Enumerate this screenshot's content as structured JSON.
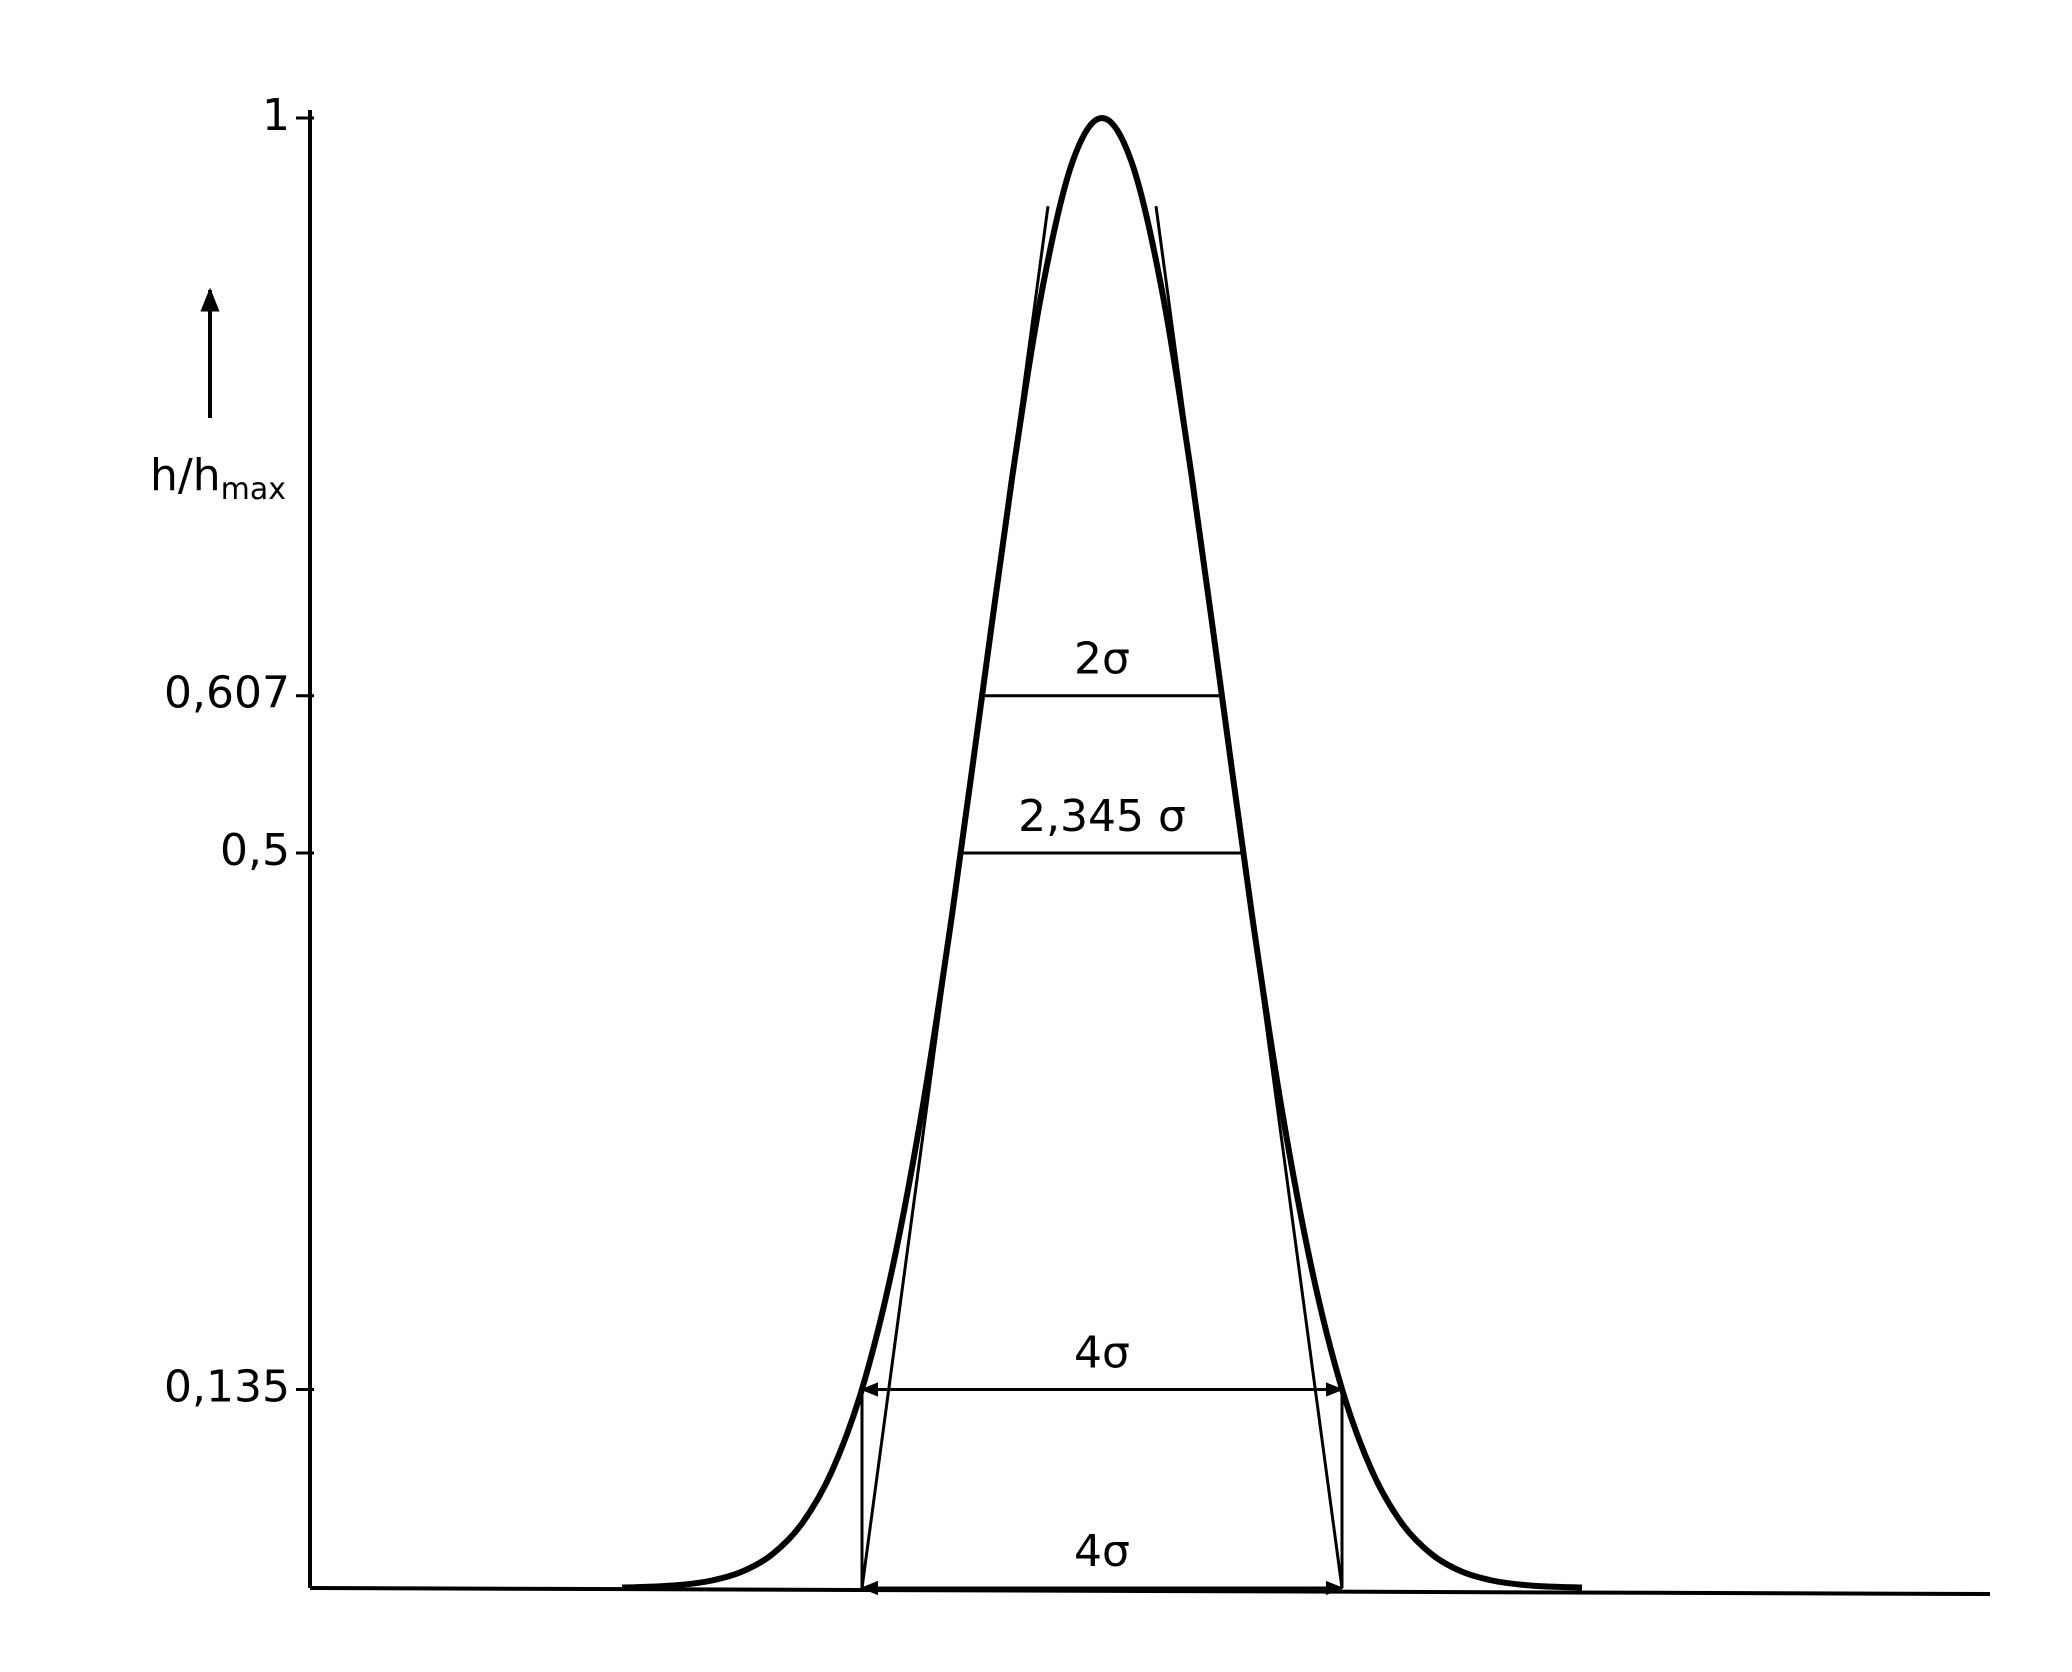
{
  "chart_data": {
    "type": "line",
    "y_label": "h/h",
    "y_label_sub": "max",
    "x": [
      -4,
      -3.75,
      -3.5,
      -3.25,
      -3,
      -2.75,
      -2.5,
      -2.25,
      -2,
      -1.75,
      -1.5,
      -1.25,
      -1,
      -0.75,
      -0.5,
      -0.25,
      0,
      0.25,
      0.5,
      0.75,
      1,
      1.25,
      1.5,
      1.75,
      2,
      2.25,
      2.5,
      2.75,
      3,
      3.25,
      3.5,
      3.75,
      4
    ],
    "series": [
      {
        "color": "#000000",
        "values": [
          0.0003,
          0.0009,
          0.0022,
          0.0051,
          0.0111,
          0.0228,
          0.0439,
          0.0796,
          0.1353,
          0.2163,
          0.3247,
          0.4578,
          0.6065,
          0.7548,
          0.8825,
          0.9692,
          1,
          0.9692,
          0.8825,
          0.7548,
          0.6065,
          0.4578,
          0.3247,
          0.2163,
          0.1353,
          0.0796,
          0.0439,
          0.0228,
          0.0111,
          0.0051,
          0.0022,
          0.0009,
          0.0003
        ]
      }
    ],
    "xlim": [
      -6.6,
      7.4
    ],
    "ylim": [
      0,
      1
    ],
    "yticks": [
      {
        "value": 0.135,
        "label": "0,135"
      },
      {
        "value": 0.5,
        "label": "0,5"
      },
      {
        "value": 0.607,
        "label": "0,607"
      },
      1
    ],
    "annotations": [
      {
        "text": "2σ",
        "y": 0.607,
        "x": [
          -1,
          1
        ]
      },
      {
        "text": "2,345 σ",
        "y": 0.5,
        "x": [
          -1.1725,
          1.1725
        ]
      },
      {
        "text": "4σ",
        "y": 0.135,
        "x": [
          -2,
          2
        ]
      },
      {
        "text": "4σ",
        "y": 0,
        "x": [
          -2,
          2
        ]
      }
    ],
    "construction_lines": [
      [
        -2,
        0,
        -0.45,
        0.94
      ],
      [
        2,
        0,
        0.45,
        0.94
      ],
      [
        -2,
        0,
        -2,
        0.135
      ],
      [
        2,
        0,
        2,
        0.135
      ]
    ]
  }
}
